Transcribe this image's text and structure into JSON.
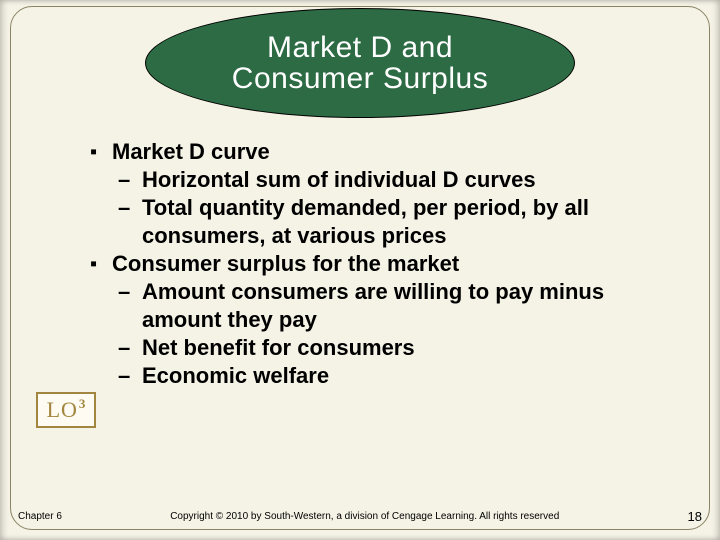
{
  "title": {
    "line1": "Market D and",
    "line2": "Consumer Surplus"
  },
  "bullets": [
    {
      "level": 1,
      "text": "Market D curve",
      "children": [
        {
          "level": 2,
          "text": "Horizontal sum of individual D curves"
        },
        {
          "level": 2,
          "text": "Total quantity demanded, per period, by all consumers, at various prices"
        }
      ]
    },
    {
      "level": 1,
      "text": "Consumer surplus for the market",
      "children": [
        {
          "level": 2,
          "text": "Amount consumers are willing to pay minus amount they pay"
        },
        {
          "level": 2,
          "text": "Net benefit for consumers"
        },
        {
          "level": 2,
          "text": "Economic welfare"
        }
      ]
    }
  ],
  "lo": {
    "label": "LO",
    "num": "3"
  },
  "footer": {
    "chapter": "Chapter 6",
    "copyright": "Copyright © 2010 by South-Western, a division of Cengage Learning.  All rights reserved",
    "page": "18"
  },
  "colors": {
    "bg": "#f5f2e6",
    "oval": "#2c6b44",
    "lo_border": "#a2863f",
    "frame_border": "#8a8463",
    "text": "#000000",
    "title_text": "#ffffff"
  },
  "typography": {
    "title_fontsize": 30,
    "bullet_fontsize": 22,
    "footer_fontsize": 10,
    "page_fontsize": 13,
    "lo_fontsize": 22
  }
}
